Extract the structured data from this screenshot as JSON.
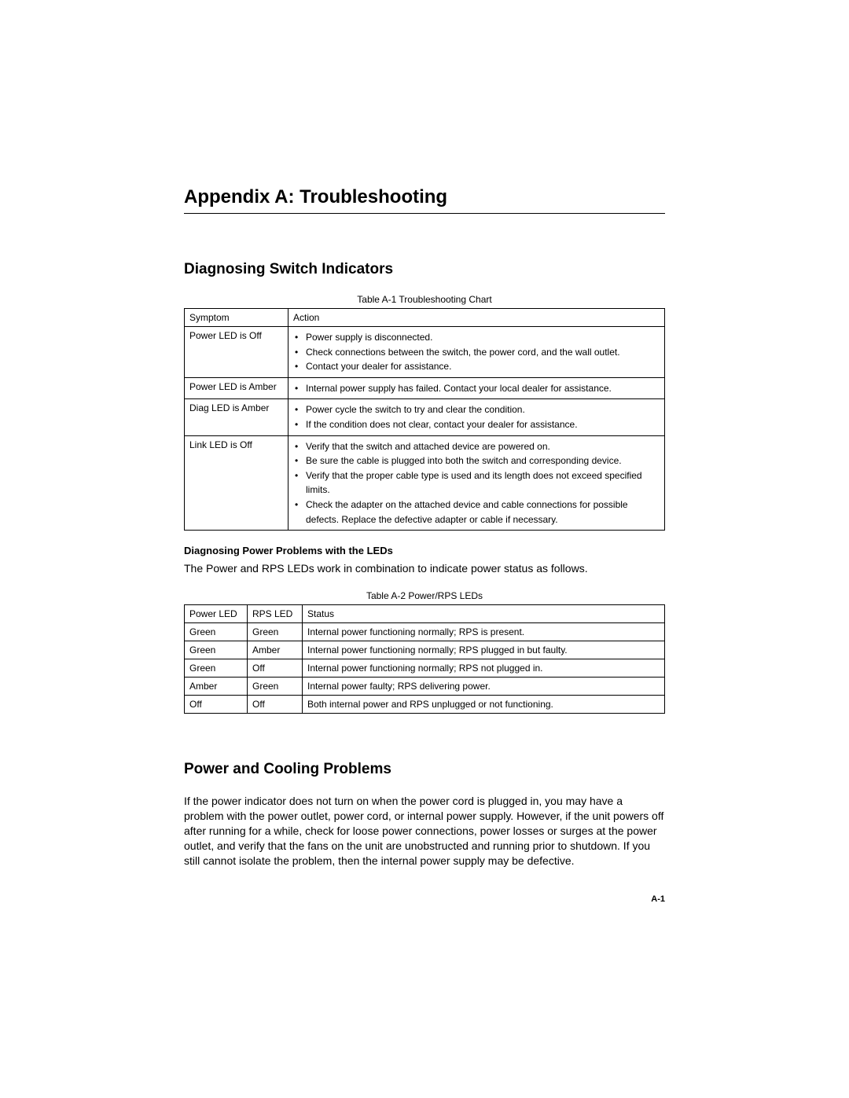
{
  "title": "Appendix A: Troubleshooting",
  "section1": {
    "heading": "Diagnosing Switch Indicators",
    "table_caption": "Table A-1  Troubleshooting Chart",
    "col1": "Symptom",
    "col2": "Action",
    "rows": [
      {
        "symptom": "Power LED is Off",
        "actions": [
          "Power supply is disconnected.",
          "Check connections between the switch, the power cord, and the wall outlet.",
          "Contact your dealer for assistance."
        ]
      },
      {
        "symptom": "Power LED is Amber",
        "actions": [
          "Internal power supply has failed. Contact your local dealer for assistance."
        ]
      },
      {
        "symptom": "Diag LED is Amber",
        "actions": [
          "Power cycle the switch to try and clear the condition.",
          "If the condition does not clear, contact your dealer for assistance."
        ]
      },
      {
        "symptom": "Link LED is Off",
        "actions": [
          "Verify that the switch and attached device are powered on.",
          "Be sure the cable is plugged into both the switch and corresponding device.",
          "Verify that the proper cable type is used and its length does not exceed specified limits.",
          "Check the adapter on the attached device and cable connections for possible defects. Replace the defective adapter or cable if necessary."
        ]
      }
    ]
  },
  "section2": {
    "subheading": "Diagnosing Power Problems with the LEDs",
    "intro": "The Power and RPS LEDs work in combination to indicate power status as follows.",
    "table_caption": "Table A-2  Power/RPS LEDs",
    "col1": "Power LED",
    "col2": "RPS LED",
    "col3": "Status",
    "rows": [
      {
        "p": "Green",
        "r": "Green",
        "s": "Internal power functioning normally; RPS is present."
      },
      {
        "p": "Green",
        "r": "Amber",
        "s": "Internal power functioning normally; RPS plugged in but faulty."
      },
      {
        "p": "Green",
        "r": "Off",
        "s": "Internal power functioning normally; RPS not plugged in."
      },
      {
        "p": "Amber",
        "r": "Green",
        "s": "Internal power faulty; RPS delivering power."
      },
      {
        "p": "Off",
        "r": "Off",
        "s": "Both internal power and RPS unplugged or not functioning."
      }
    ]
  },
  "section3": {
    "heading": "Power and Cooling Problems",
    "body": "If the power indicator does not turn on when the power cord is plugged in, you may have a problem with the power outlet, power cord, or internal power supply. However, if the unit powers off after running for a while, check for loose power connections, power losses or surges at the power outlet, and verify that the fans on the unit are unobstructed and running prior to shutdown. If you still cannot isolate the problem, then the internal power supply may be defective."
  },
  "page_number": "A-1"
}
